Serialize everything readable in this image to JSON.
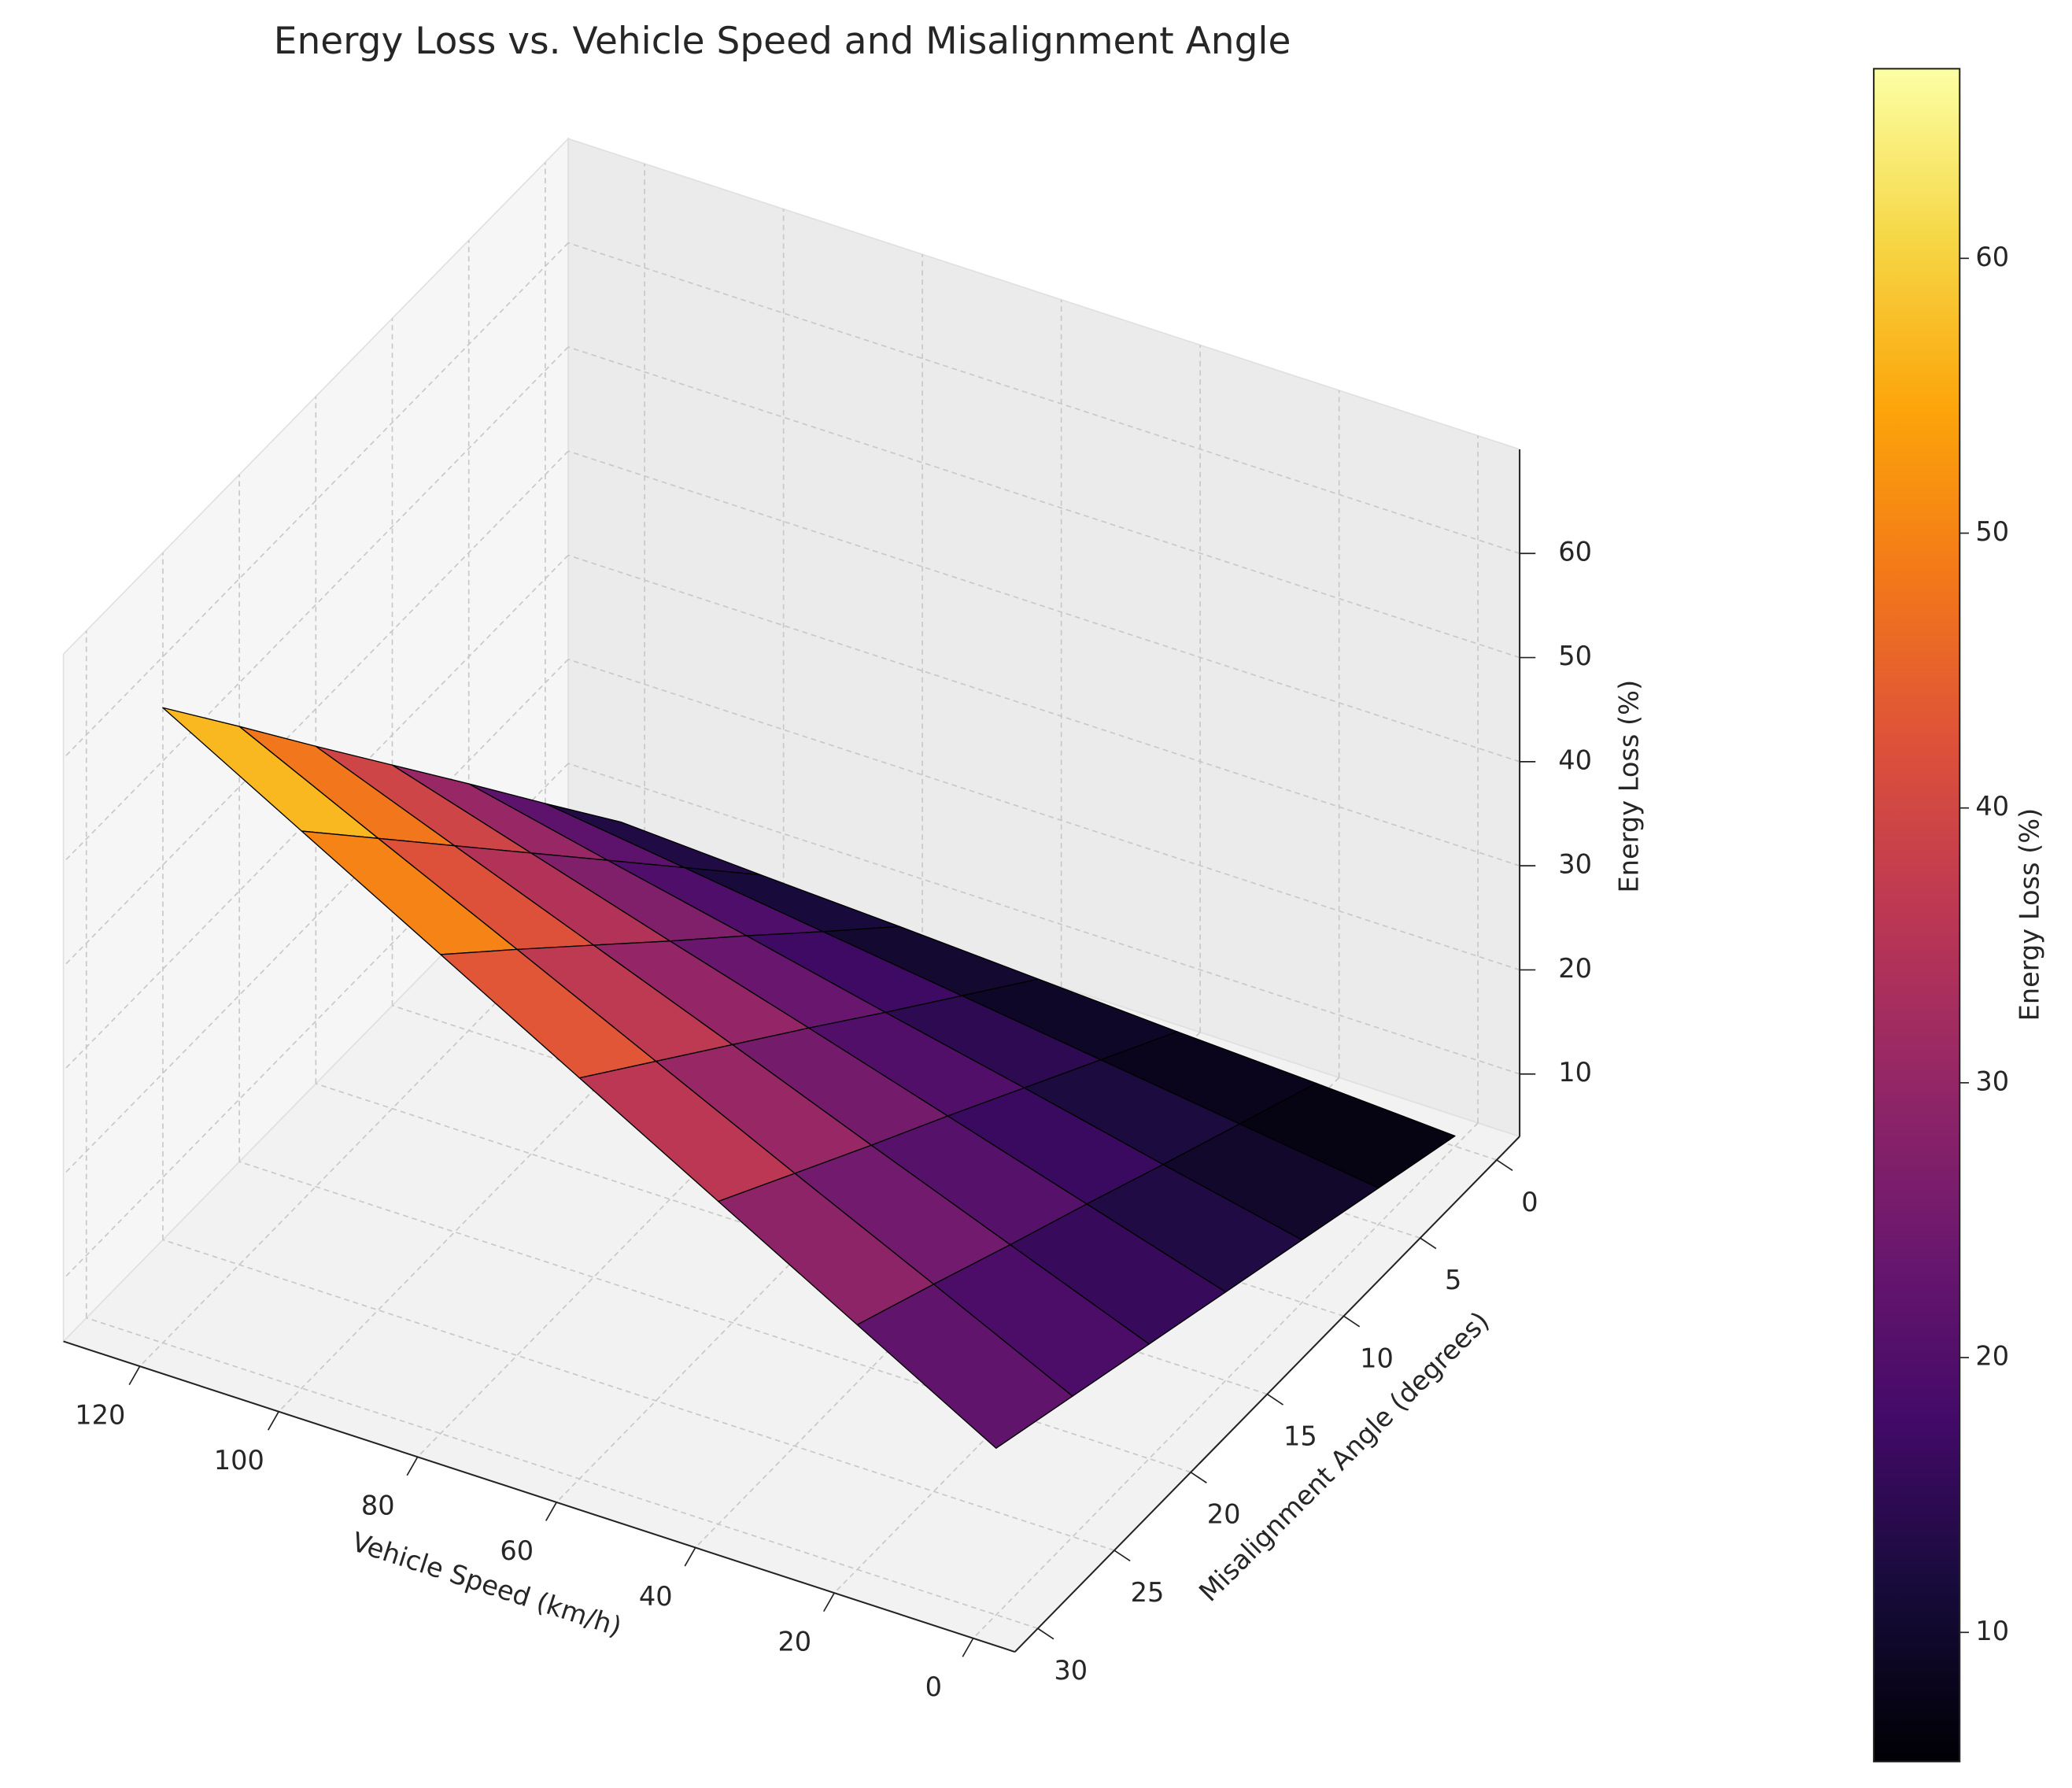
{
  "chart_data": {
    "type": "surface3d",
    "title": "Energy Loss vs. Vehicle Speed and Misalignment Angle",
    "x_label": "Vehicle Speed (km/h)",
    "y_label": "Misalignment Angle (degrees)",
    "z_label": "Energy Loss (%)",
    "colorbar_label": "Energy Loss (%)",
    "x": [
      0,
      20,
      40,
      60,
      80,
      100,
      120
    ],
    "y": [
      0,
      5,
      10,
      15,
      20,
      25,
      30
    ],
    "z": [
      [
        5,
        5.7,
        6.3,
        7,
        7.7,
        8.3,
        9
      ],
      [
        7.5,
        9.3,
        11.1,
        12.9,
        14.7,
        16.5,
        18.3
      ],
      [
        10,
        12.9,
        15.9,
        18.8,
        21.8,
        24.7,
        27.7
      ],
      [
        12.5,
        16.6,
        20.7,
        24.8,
        28.8,
        32.9,
        37
      ],
      [
        15,
        20.2,
        25.4,
        30.7,
        35.9,
        41.1,
        46.3
      ],
      [
        17.5,
        23.9,
        30.2,
        36.6,
        43,
        49.3,
        55.7
      ],
      [
        20,
        27.5,
        35,
        42.5,
        50,
        57.5,
        65
      ]
    ],
    "xlim": [
      -6,
      131
    ],
    "ylim": [
      -1.5,
      31.5
    ],
    "zlim": [
      4,
      70
    ],
    "xticks": [
      0,
      20,
      40,
      60,
      80,
      100,
      120
    ],
    "yticks": [
      0,
      5,
      10,
      15,
      20,
      25,
      30
    ],
    "zticks": [
      10,
      20,
      30,
      40,
      50,
      60
    ],
    "clim": [
      5.3,
      66.9
    ],
    "cticks": [
      10,
      20,
      30,
      40,
      50,
      60
    ],
    "cmap": "inferno",
    "grid": true
  }
}
